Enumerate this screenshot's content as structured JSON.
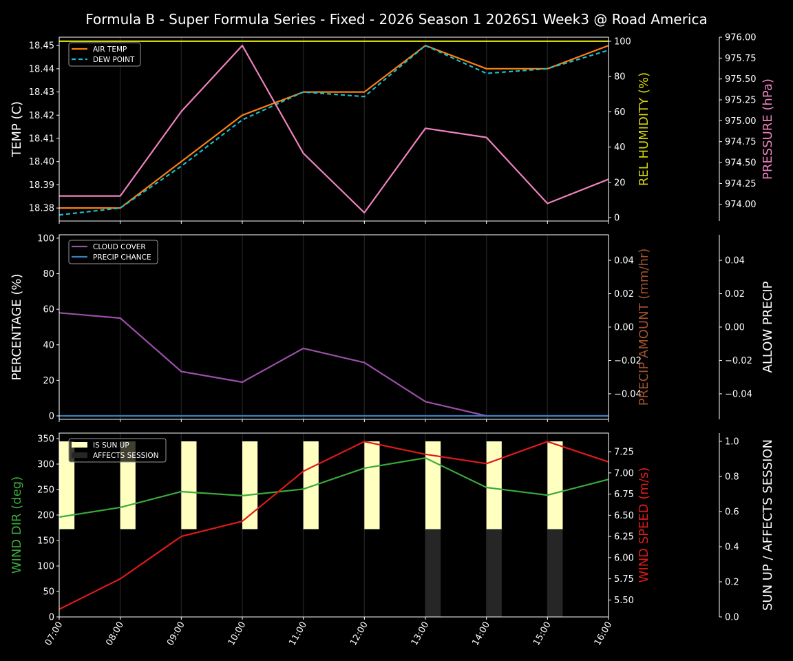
{
  "chart_data": {
    "title": "Formula B - Super Formula Series - Fixed - 2026 Season 1 2026S1 Week3 @ Road America",
    "x": [
      "07:00",
      "08:00",
      "09:00",
      "10:00",
      "11:00",
      "12:00",
      "13:00",
      "14:00",
      "15:00",
      "16:00"
    ],
    "grid": "vertical",
    "panels": [
      {
        "axes": {
          "left": {
            "label": "TEMP (C)",
            "color": "#ffffff",
            "range": [
              18.3744,
              18.4536
            ],
            "ticks": [
              "18.38",
              "18.39",
              "18.40",
              "18.41",
              "18.42",
              "18.43",
              "18.44",
              "18.45"
            ]
          },
          "right1": {
            "label": "REL HUMIDITY (%)",
            "color": "#d4d40a",
            "range": [
              -1.95,
              102.3
            ],
            "ticks": [
              "0",
              "20",
              "40",
              "60",
              "80",
              "100"
            ]
          },
          "right2": {
            "label": "PRESSURE (hPa)",
            "color": "#f082be",
            "range": [
              973.8,
              976.0
            ],
            "ticks": [
              "974.00",
              "974.25",
              "974.50",
              "974.75",
              "975.00",
              "975.25",
              "975.50",
              "975.75",
              "976.00"
            ]
          }
        },
        "legend": {
          "placement": "top-left",
          "entries": [
            "AIR TEMP",
            "DEW POINT"
          ]
        },
        "series": [
          {
            "name": "AIR TEMP",
            "type": "line",
            "axis": "left",
            "color": "#ff7f0e",
            "dash": false,
            "values": [
              18.38,
              18.38,
              18.4,
              18.42,
              18.43,
              18.43,
              18.45,
              18.44,
              18.44,
              18.45
            ]
          },
          {
            "name": "DEW POINT",
            "type": "line",
            "axis": "left",
            "color": "#17becf",
            "dash": true,
            "values": [
              18.377,
              18.38,
              18.398,
              18.418,
              18.43,
              18.428,
              18.45,
              18.438,
              18.44,
              18.448
            ]
          },
          {
            "type": "line",
            "axis": "right1",
            "color": "#d4d40a",
            "dash": false,
            "values": [
              100,
              100,
              100,
              100,
              100,
              100,
              100,
              100,
              100,
              100
            ]
          },
          {
            "type": "line",
            "axis": "right2",
            "color": "#f082be",
            "dash": false,
            "values": [
              974.1,
              974.1,
              975.11,
              975.9,
              974.61,
              973.9,
              974.91,
              974.8,
              974.01,
              974.3
            ]
          }
        ]
      },
      {
        "axes": {
          "left": {
            "label": "PERCENTAGE (%)",
            "color": "#ffffff",
            "range": [
              -1.94,
              101.9
            ],
            "ticks": [
              "0",
              "20",
              "40",
              "60",
              "80",
              "100"
            ]
          },
          "right1": {
            "label": "PRECIP AMOUNT (mm/hr)",
            "color": "#a0522d",
            "range": [
              -0.0553,
              0.0553
            ],
            "ticks": [
              "−0.04",
              "−0.02",
              "0.00",
              "0.02",
              "0.04"
            ]
          },
          "right2": {
            "label": "ALLOW PRECIP",
            "color": "#ffffff",
            "range": [
              -0.0553,
              0.0553
            ],
            "ticks": [
              "−0.04",
              "−0.02",
              "0.00",
              "0.02",
              "0.04"
            ]
          }
        },
        "legend": {
          "placement": "top-left",
          "entries": [
            "CLOUD COVER",
            "PRECIP CHANCE"
          ]
        },
        "series": [
          {
            "name": "CLOUD COVER",
            "type": "line",
            "axis": "left",
            "color": "#9b4fa8",
            "dash": false,
            "values": [
              58,
              55,
              25,
              19,
              38,
              30,
              8,
              0,
              0,
              0
            ]
          },
          {
            "name": "PRECIP CHANCE",
            "type": "line",
            "axis": "left",
            "color": "#3a7fc0",
            "dash": false,
            "values": [
              0,
              0,
              0,
              0,
              0,
              0,
              0,
              0,
              0,
              0
            ]
          }
        ]
      },
      {
        "axes": {
          "left": {
            "label": "WIND DIR (deg)",
            "color": "#3aaa3a",
            "range": [
              0,
              360.8
            ],
            "ticks": [
              "0",
              "50",
              "100",
              "150",
              "200",
              "250",
              "300",
              "350"
            ]
          },
          "right1": {
            "label": "WIND SPEED (m/s)",
            "color": "#e01a1a",
            "range": [
              5.3,
              7.47
            ],
            "ticks": [
              "5.50",
              "5.75",
              "6.00",
              "6.25",
              "6.50",
              "6.75",
              "7.00",
              "7.25"
            ]
          },
          "right2": {
            "label": "SUN UP / AFFECTS SESSION",
            "color": "#ffffff",
            "range": [
              0,
              1.047
            ],
            "ticks": [
              "0.0",
              "0.2",
              "0.4",
              "0.6",
              "0.8",
              "1.0"
            ]
          }
        },
        "legend": {
          "placement": "top-left",
          "entries": [
            "IS SUN UP",
            "AFFECTS SESSION"
          ]
        },
        "series": [
          {
            "name": "IS SUN UP",
            "type": "bar",
            "axis": "right2",
            "color": "#ffffc0",
            "values": [
              1,
              1,
              1,
              1,
              1,
              1,
              1,
              1,
              1,
              0
            ]
          },
          {
            "name": "AFFECTS SESSION",
            "type": "bar",
            "axis": "right2",
            "color": "#262626",
            "values": [
              0,
              0,
              0,
              0,
              0,
              0,
              1,
              1,
              1,
              0
            ]
          },
          {
            "type": "line",
            "axis": "left",
            "color": "#3aaa3a",
            "dash": false,
            "values": [
              196,
              215,
              246,
              238,
              251,
              292,
              312,
              254,
              239,
              270
            ]
          },
          {
            "type": "line",
            "axis": "right1",
            "color": "#e01a1a",
            "dash": false,
            "values": [
              5.39,
              5.75,
              6.25,
              6.43,
              7.02,
              7.37,
              7.22,
              7.11,
              7.37,
              7.13
            ]
          }
        ]
      }
    ]
  }
}
